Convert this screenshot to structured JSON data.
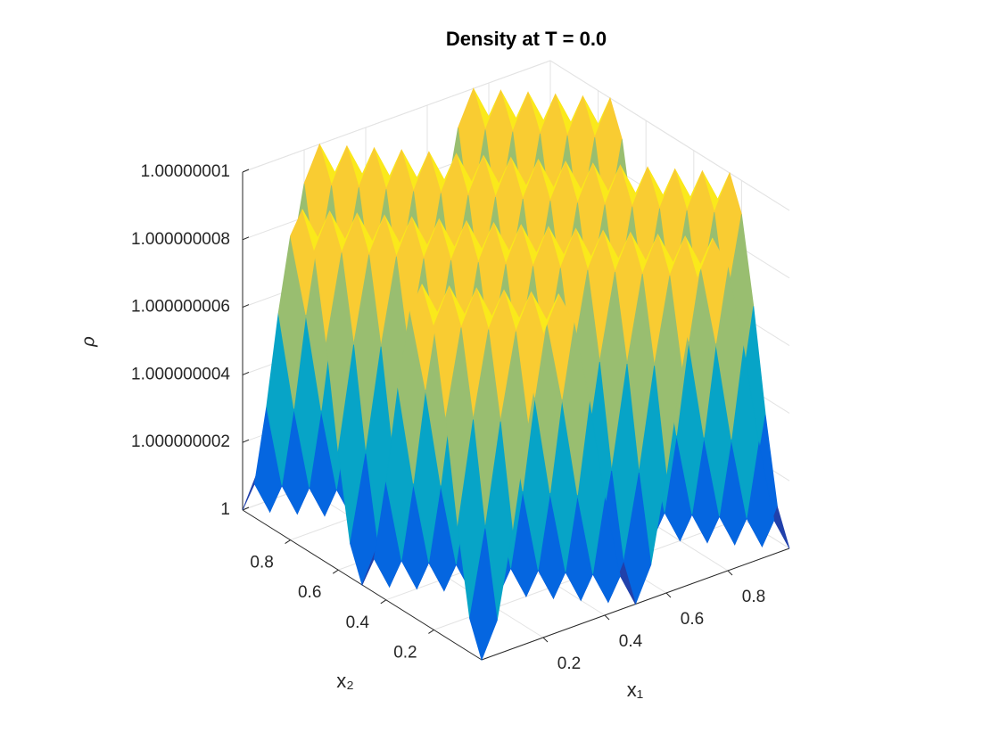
{
  "chart_data": {
    "type": "surface",
    "title": "Density at T = 0.0",
    "x_label": "x₁",
    "y_label": "x₂",
    "z_label": "ρ",
    "x": [
      0,
      0.05,
      0.1,
      0.15,
      0.2,
      0.25,
      0.3,
      0.35,
      0.4,
      0.45,
      0.5,
      0.55,
      0.6,
      0.65,
      0.7,
      0.75,
      0.8,
      0.85,
      0.9,
      0.95,
      1
    ],
    "y": [
      0,
      0.05,
      0.1,
      0.15,
      0.2,
      0.25,
      0.3,
      0.35,
      0.4,
      0.45,
      0.5,
      0.55,
      0.6,
      0.65,
      0.7,
      0.75,
      0.8,
      0.85,
      0.9,
      0.95,
      1
    ],
    "z": [
      [
        1,
        1.000000001,
        1.0000000035,
        1.0000000065,
        1.000000009,
        1.00000001,
        1.000000009,
        1.0000000065,
        1.0000000035,
        1.000000001,
        1,
        1.000000001,
        1.0000000035,
        1.0000000065,
        1.000000009,
        1.00000001,
        1.000000009,
        1.0000000065,
        1.0000000035,
        1.000000001,
        1
      ],
      [
        1.000000001,
        1.0000000035,
        1.0000000065,
        1.000000009,
        1.00000001,
        1.000000009,
        1.0000000065,
        1.0000000035,
        1.000000001,
        1,
        1.000000001,
        1.0000000035,
        1.0000000065,
        1.000000009,
        1.00000001,
        1.000000009,
        1.0000000065,
        1.0000000035,
        1.000000001,
        1,
        1.000000001
      ],
      [
        1.0000000035,
        1.0000000065,
        1.000000009,
        1.00000001,
        1.000000009,
        1.0000000065,
        1.0000000035,
        1.000000001,
        1,
        1.000000001,
        1.0000000035,
        1.0000000065,
        1.000000009,
        1.00000001,
        1.000000009,
        1.0000000065,
        1.0000000035,
        1.000000001,
        1,
        1.000000001,
        1.0000000035
      ],
      [
        1.0000000065,
        1.000000009,
        1.00000001,
        1.000000009,
        1.0000000065,
        1.0000000035,
        1.000000001,
        1,
        1.000000001,
        1.0000000035,
        1.0000000065,
        1.000000009,
        1.00000001,
        1.000000009,
        1.0000000065,
        1.0000000035,
        1.000000001,
        1,
        1.000000001,
        1.0000000035,
        1.0000000065
      ],
      [
        1.000000009,
        1.00000001,
        1.000000009,
        1.0000000065,
        1.0000000035,
        1.000000001,
        1,
        1.000000001,
        1.0000000035,
        1.0000000065,
        1.000000009,
        1.00000001,
        1.000000009,
        1.0000000065,
        1.0000000035,
        1.000000001,
        1,
        1.000000001,
        1.0000000035,
        1.0000000065,
        1.000000009
      ],
      [
        1.00000001,
        1.000000009,
        1.0000000065,
        1.0000000035,
        1.000000001,
        1,
        1.000000001,
        1.0000000035,
        1.0000000065,
        1.000000009,
        1.00000001,
        1.000000009,
        1.0000000065,
        1.0000000035,
        1.000000001,
        1,
        1.000000001,
        1.0000000035,
        1.0000000065,
        1.000000009,
        1.00000001
      ],
      [
        1.000000009,
        1.0000000065,
        1.0000000035,
        1.000000001,
        1,
        1.000000001,
        1.0000000035,
        1.0000000065,
        1.000000009,
        1.00000001,
        1.000000009,
        1.0000000065,
        1.0000000035,
        1.000000001,
        1,
        1.000000001,
        1.0000000035,
        1.0000000065,
        1.000000009,
        1.00000001,
        1.000000009
      ],
      [
        1.0000000065,
        1.0000000035,
        1.000000001,
        1,
        1.000000001,
        1.0000000035,
        1.0000000065,
        1.000000009,
        1.00000001,
        1.000000009,
        1.0000000065,
        1.0000000035,
        1.000000001,
        1,
        1.000000001,
        1.0000000035,
        1.0000000065,
        1.000000009,
        1.00000001,
        1.000000009,
        1.0000000065
      ],
      [
        1.0000000035,
        1.000000001,
        1,
        1.000000001,
        1.0000000035,
        1.0000000065,
        1.000000009,
        1.00000001,
        1.000000009,
        1.0000000065,
        1.0000000035,
        1.000000001,
        1,
        1.000000001,
        1.0000000035,
        1.0000000065,
        1.000000009,
        1.00000001,
        1.000000009,
        1.0000000065,
        1.0000000035
      ],
      [
        1.000000001,
        1,
        1.000000001,
        1.0000000035,
        1.0000000065,
        1.000000009,
        1.00000001,
        1.000000009,
        1.0000000065,
        1.0000000035,
        1.000000001,
        1,
        1.000000001,
        1.0000000035,
        1.0000000065,
        1.000000009,
        1.00000001,
        1.000000009,
        1.0000000065,
        1.0000000035,
        1.000000001
      ],
      [
        1,
        1.000000001,
        1.0000000035,
        1.0000000065,
        1.000000009,
        1.00000001,
        1.000000009,
        1.0000000065,
        1.0000000035,
        1.000000001,
        1,
        1.000000001,
        1.0000000035,
        1.0000000065,
        1.000000009,
        1.00000001,
        1.000000009,
        1.0000000065,
        1.0000000035,
        1.000000001,
        1
      ],
      [
        1.000000001,
        1.0000000035,
        1.0000000065,
        1.000000009,
        1.00000001,
        1.000000009,
        1.0000000065,
        1.0000000035,
        1.000000001,
        1,
        1.000000001,
        1.0000000035,
        1.0000000065,
        1.000000009,
        1.00000001,
        1.000000009,
        1.0000000065,
        1.0000000035,
        1.000000001,
        1,
        1.000000001
      ],
      [
        1.0000000035,
        1.0000000065,
        1.000000009,
        1.00000001,
        1.000000009,
        1.0000000065,
        1.0000000035,
        1.000000001,
        1,
        1.000000001,
        1.0000000035,
        1.0000000065,
        1.000000009,
        1.00000001,
        1.000000009,
        1.0000000065,
        1.0000000035,
        1.000000001,
        1,
        1.000000001,
        1.0000000035
      ],
      [
        1.0000000065,
        1.000000009,
        1.00000001,
        1.000000009,
        1.0000000065,
        1.0000000035,
        1.000000001,
        1,
        1.000000001,
        1.0000000035,
        1.0000000065,
        1.000000009,
        1.00000001,
        1.000000009,
        1.0000000065,
        1.0000000035,
        1.000000001,
        1,
        1.000000001,
        1.0000000035,
        1.0000000065
      ],
      [
        1.000000009,
        1.00000001,
        1.000000009,
        1.0000000065,
        1.0000000035,
        1.000000001,
        1,
        1.000000001,
        1.0000000035,
        1.0000000065,
        1.000000009,
        1.00000001,
        1.000000009,
        1.0000000065,
        1.0000000035,
        1.000000001,
        1,
        1.000000001,
        1.0000000035,
        1.0000000065,
        1.000000009
      ],
      [
        1.00000001,
        1.000000009,
        1.0000000065,
        1.0000000035,
        1.000000001,
        1,
        1.000000001,
        1.0000000035,
        1.0000000065,
        1.000000009,
        1.00000001,
        1.000000009,
        1.0000000065,
        1.0000000035,
        1.000000001,
        1,
        1.000000001,
        1.0000000035,
        1.0000000065,
        1.000000009,
        1.00000001
      ],
      [
        1.000000009,
        1.0000000065,
        1.0000000035,
        1.000000001,
        1,
        1.000000001,
        1.0000000035,
        1.0000000065,
        1.000000009,
        1.00000001,
        1.000000009,
        1.0000000065,
        1.0000000035,
        1.000000001,
        1,
        1.000000001,
        1.0000000035,
        1.0000000065,
        1.000000009,
        1.00000001,
        1.000000009
      ],
      [
        1.0000000065,
        1.0000000035,
        1.000000001,
        1,
        1.000000001,
        1.0000000035,
        1.0000000065,
        1.000000009,
        1.00000001,
        1.000000009,
        1.0000000065,
        1.0000000035,
        1.000000001,
        1,
        1.000000001,
        1.0000000035,
        1.0000000065,
        1.000000009,
        1.00000001,
        1.000000009,
        1.0000000065
      ],
      [
        1.0000000035,
        1.000000001,
        1,
        1.000000001,
        1.0000000035,
        1.0000000065,
        1.000000009,
        1.00000001,
        1.000000009,
        1.0000000065,
        1.0000000035,
        1.000000001,
        1,
        1.000000001,
        1.0000000035,
        1.0000000065,
        1.000000009,
        1.00000001,
        1.000000009,
        1.0000000065,
        1.0000000035
      ],
      [
        1.000000001,
        1,
        1.000000001,
        1.0000000035,
        1.0000000065,
        1.000000009,
        1.00000001,
        1.000000009,
        1.0000000065,
        1.0000000035,
        1.000000001,
        1,
        1.000000001,
        1.0000000035,
        1.0000000065,
        1.000000009,
        1.00000001,
        1.000000009,
        1.0000000065,
        1.0000000035,
        1.000000001
      ],
      [
        1,
        1.000000001,
        1.0000000035,
        1.0000000065,
        1.000000009,
        1.00000001,
        1.000000009,
        1.0000000065,
        1.0000000035,
        1.000000001,
        1,
        1.000000001,
        1.0000000035,
        1.0000000065,
        1.000000009,
        1.00000001,
        1.000000009,
        1.0000000065,
        1.0000000035,
        1.000000001,
        1
      ]
    ],
    "xlim": [
      0,
      1
    ],
    "ylim": [
      0,
      1
    ],
    "zlim": [
      1,
      1.00000001
    ],
    "xticks": [
      0.2,
      0.4,
      0.6,
      0.8
    ],
    "yticks": [
      0.2,
      0.4,
      0.6,
      0.8
    ],
    "zticks": [
      1,
      1.000000002,
      1.000000004,
      1.000000006,
      1.000000008,
      1.00000001
    ],
    "grid": true,
    "colormap": [
      "#352a87",
      "#0363e1",
      "#1485d4",
      "#06a7c6",
      "#38b99e",
      "#92bf73",
      "#d9ba56",
      "#fcce2e",
      "#f9fb0e"
    ]
  }
}
